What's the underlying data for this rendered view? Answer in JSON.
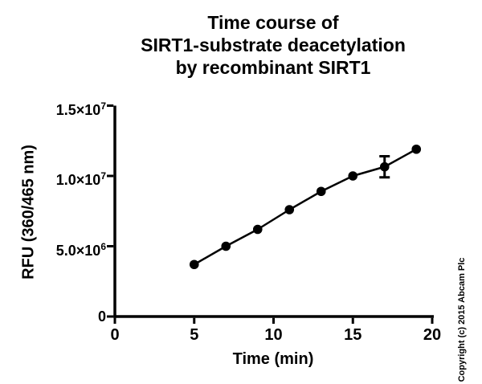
{
  "page": {
    "background": "#ffffff",
    "ink_color": "#000000"
  },
  "chart_data": {
    "type": "line",
    "title": "Time course of\nSIRT1-substrate deacetylation\nby recombinant SIRT1",
    "xlabel": "Time (min)",
    "ylabel": "RFU (360/465 nm)",
    "xlim": [
      0,
      20
    ],
    "ylim": [
      0,
      15000000
    ],
    "grid": false,
    "legend": "none",
    "marker": "filled-circle",
    "line_color": "#000000",
    "marker_color": "#000000",
    "xticks": [
      {
        "value": 0,
        "label": "0"
      },
      {
        "value": 5,
        "label": "5"
      },
      {
        "value": 10,
        "label": "10"
      },
      {
        "value": 15,
        "label": "15"
      },
      {
        "value": 20,
        "label": "20"
      }
    ],
    "yticks": [
      {
        "value": 0,
        "base": "0",
        "exp": ""
      },
      {
        "value": 5000000,
        "base": "5.0×10",
        "exp": "6"
      },
      {
        "value": 10000000,
        "base": "1.0×10",
        "exp": "7"
      },
      {
        "value": 15000000,
        "base": "1.5×10",
        "exp": "7"
      }
    ],
    "series": [
      {
        "name": "SIRT1-substrate deacetylation",
        "x": [
          5,
          7,
          9,
          11,
          13,
          15,
          17,
          19
        ],
        "y": [
          3700000,
          5000000,
          6200000,
          7600000,
          8900000,
          10000000,
          10650000,
          11900000
        ]
      }
    ],
    "error_bars": [
      {
        "x": 17,
        "y": 10650000,
        "plus": 750000,
        "minus": 750000
      }
    ]
  },
  "copyright": "Copyright (c) 2015 Abcam Plc"
}
